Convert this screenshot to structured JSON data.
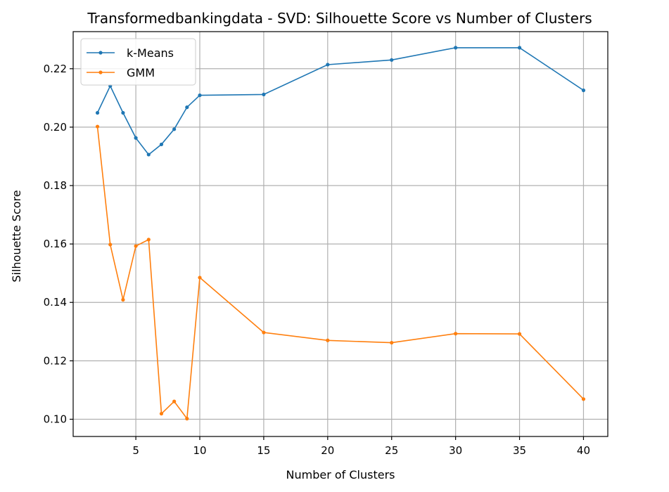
{
  "chart_data": {
    "type": "line",
    "title": "Transformedbankingdata - SVD: Silhouette Score vs Number of Clusters",
    "xlabel": "Number of Clusters",
    "ylabel": "Silhouette Score",
    "x": [
      2,
      3,
      4,
      5,
      6,
      7,
      8,
      9,
      10,
      15,
      20,
      25,
      30,
      35,
      40
    ],
    "xlim": [
      0.1,
      41.9
    ],
    "ylim": [
      0.0941,
      0.2327
    ],
    "xticks": [
      5,
      10,
      15,
      20,
      25,
      30,
      35,
      40
    ],
    "yticks": [
      0.1,
      0.12,
      0.14,
      0.16,
      0.18,
      0.2,
      0.22
    ],
    "grid": true,
    "legend_position": "top-left",
    "series": [
      {
        "name": "k-Means",
        "color": "#1f77b4",
        "values": [
          0.2049,
          0.2141,
          0.2049,
          0.1963,
          0.1906,
          0.1941,
          0.1993,
          0.2068,
          0.2109,
          0.2112,
          0.2214,
          0.223,
          0.2272,
          0.2272,
          0.2126
        ]
      },
      {
        "name": "GMM",
        "color": "#ff7f0e",
        "values": [
          0.2002,
          0.1598,
          0.1409,
          0.1593,
          0.1615,
          0.1019,
          0.1061,
          0.1002,
          0.1485,
          0.1297,
          0.127,
          0.1262,
          0.1293,
          0.1292,
          0.1069
        ]
      }
    ]
  }
}
